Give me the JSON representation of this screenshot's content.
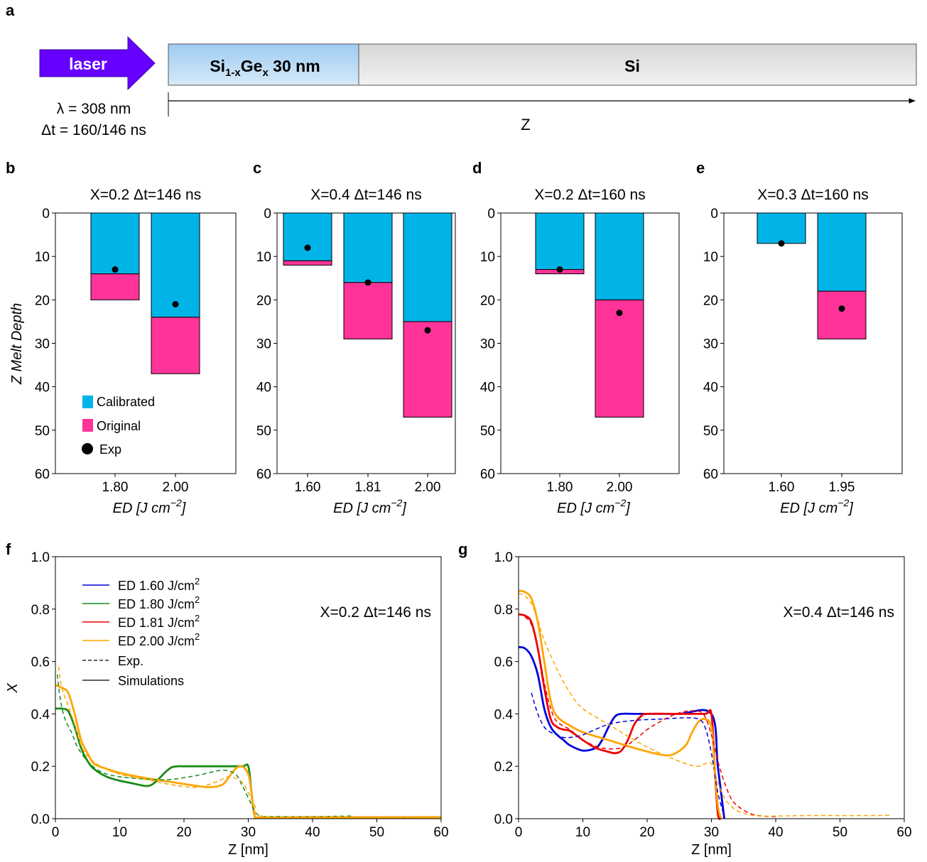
{
  "panel_labels": [
    "a",
    "b",
    "c",
    "d",
    "e",
    "f",
    "g"
  ],
  "schematic": {
    "laser_label": "laser",
    "wavelength": "λ = 308 nm",
    "pulse": "Δt = 160/146 ns",
    "layer1": "Si",
    "layer1_sub": "1-x",
    "layer1_ge": "Ge",
    "layer1_ge_sub": "x",
    "layer1_thickness": " 30 nm",
    "layer2": "Si",
    "axis_label": "Z",
    "colors": {
      "laser": "#6600ff",
      "sige_top": "#9ecbf2",
      "sige_bottom": "#d6eaf8",
      "si": "#e4e4e4"
    }
  },
  "chart_data": [
    {
      "id": "b",
      "type": "bar",
      "title": "X=0.2  Δt=146 ns",
      "ylabel": "Z  Melt  Depth",
      "xlabel": "ED   [J   cm",
      "xlabel_sup": "−2",
      "xlabel_end": "]",
      "ylim": [
        60,
        0
      ],
      "yticks": [
        0,
        10,
        20,
        30,
        40,
        50,
        60
      ],
      "categories": [
        "1.80",
        "2.00"
      ],
      "series": [
        {
          "name": "Calibrated",
          "values": [
            14,
            24
          ],
          "color": "#00b4e8"
        },
        {
          "name": "Original",
          "values": [
            20,
            37
          ],
          "color": "#ff3399"
        },
        {
          "name": "Exp",
          "values": [
            13,
            21
          ],
          "marker": "circle"
        }
      ],
      "legend": [
        "Calibrated",
        "Original",
        "Exp"
      ]
    },
    {
      "id": "c",
      "type": "bar",
      "title": "X=0.4  Δt=146 ns",
      "xlabel": "ED   [J   cm",
      "xlabel_sup": "−2",
      "xlabel_end": "]",
      "ylim": [
        60,
        0
      ],
      "yticks": [
        0,
        10,
        20,
        30,
        40,
        50,
        60
      ],
      "categories": [
        "1.60",
        "1.81",
        "2.00"
      ],
      "series": [
        {
          "name": "Calibrated",
          "values": [
            11,
            16,
            25
          ]
        },
        {
          "name": "Original",
          "values": [
            12,
            29,
            47
          ]
        },
        {
          "name": "Exp",
          "values": [
            8,
            16,
            27
          ]
        }
      ]
    },
    {
      "id": "d",
      "type": "bar",
      "title": "X=0.2  Δt=160 ns",
      "xlabel": "ED   [J   cm",
      "xlabel_sup": "−2",
      "xlabel_end": "]",
      "ylim": [
        60,
        0
      ],
      "yticks": [
        0,
        10,
        20,
        30,
        40,
        50,
        60
      ],
      "categories": [
        "1.80",
        "2.00"
      ],
      "series": [
        {
          "name": "Calibrated",
          "values": [
            13,
            20
          ]
        },
        {
          "name": "Original",
          "values": [
            14,
            47
          ]
        },
        {
          "name": "Exp",
          "values": [
            13,
            23
          ]
        }
      ]
    },
    {
      "id": "e",
      "type": "bar",
      "title": "X=0.3  Δt=160 ns",
      "xlabel": "ED   [J   cm",
      "xlabel_sup": "−2",
      "xlabel_end": "]",
      "ylim": [
        60,
        0
      ],
      "yticks": [
        0,
        10,
        20,
        30,
        40,
        50,
        60
      ],
      "categories": [
        "1.60",
        "1.95"
      ],
      "series": [
        {
          "name": "Calibrated",
          "values": [
            7,
            18
          ]
        },
        {
          "name": "Original",
          "values": [
            7,
            29
          ]
        },
        {
          "name": "Exp",
          "values": [
            7,
            22
          ]
        }
      ]
    },
    {
      "id": "f",
      "type": "line",
      "title": "X=0.2  Δt=146 ns",
      "xlabel": "Z [nm]",
      "ylabel": "X",
      "xlim": [
        0,
        60
      ],
      "ylim": [
        0,
        1.0
      ],
      "xticks": [
        0,
        10,
        20,
        30,
        40,
        50,
        60
      ],
      "yticks": [
        "0.0",
        "0.2",
        "0.4",
        "0.6",
        "0.8",
        "1.0"
      ],
      "legend": [
        {
          "label": "ED 1.60 J/cm",
          "sup": "2",
          "color": "#0000dd",
          "style": "solid"
        },
        {
          "label": "ED 1.80 J/cm",
          "sup": "2",
          "color": "#1a8a1a",
          "style": "solid"
        },
        {
          "label": "ED 1.81 J/cm",
          "sup": "2",
          "color": "#ee0000",
          "style": "solid"
        },
        {
          "label": "ED 2.00 J/cm",
          "sup": "2",
          "color": "#ffa500",
          "style": "solid"
        },
        {
          "label": "Exp.",
          "color": "#000000",
          "style": "dashed"
        },
        {
          "label": "Simulations",
          "color": "#000000",
          "style": "solid"
        }
      ],
      "series": [
        {
          "name": "ED 1.80 J/cm2 sim",
          "color": "#1a8a1a",
          "style": "solid",
          "x": [
            0,
            1,
            2,
            3,
            4,
            5,
            6,
            8,
            10,
            12,
            14,
            15,
            16,
            17,
            18,
            19,
            20,
            25,
            29,
            30,
            30.5,
            31,
            32,
            40,
            60
          ],
          "y": [
            0.42,
            0.42,
            0.41,
            0.35,
            0.27,
            0.22,
            0.19,
            0.16,
            0.145,
            0.135,
            0.125,
            0.13,
            0.15,
            0.175,
            0.195,
            0.2,
            0.2,
            0.2,
            0.2,
            0.2,
            0.1,
            0.01,
            0.005,
            0.005,
            0.005
          ]
        },
        {
          "name": "ED 2.00 J/cm2 sim",
          "color": "#ffa500",
          "style": "solid",
          "x": [
            0,
            1,
            2,
            3,
            4,
            5,
            6,
            8,
            10,
            14,
            18,
            22,
            24,
            26,
            27,
            28,
            29,
            30,
            30.5,
            31,
            32,
            40,
            60
          ],
          "y": [
            0.51,
            0.5,
            0.48,
            0.4,
            0.3,
            0.25,
            0.21,
            0.19,
            0.175,
            0.155,
            0.14,
            0.125,
            0.12,
            0.13,
            0.16,
            0.19,
            0.2,
            0.17,
            0.1,
            0.01,
            0.005,
            0.005,
            0.005
          ]
        },
        {
          "name": "ED 1.80 J/cm2 exp",
          "color": "#1a8a1a",
          "style": "dashed",
          "x": [
            0.3,
            0.8,
            1.5,
            2.5,
            3.5,
            5,
            7,
            10,
            15,
            18,
            22,
            26,
            28,
            29,
            30,
            31,
            32,
            35,
            40,
            46
          ],
          "y": [
            0.55,
            0.45,
            0.38,
            0.33,
            0.27,
            0.22,
            0.18,
            0.16,
            0.15,
            0.15,
            0.165,
            0.185,
            0.17,
            0.13,
            0.08,
            0.03,
            0.01,
            0.008,
            0.008,
            0.01
          ]
        },
        {
          "name": "ED 2.00 J/cm2 exp",
          "color": "#ffa500",
          "style": "dashed",
          "x": [
            0.5,
            1,
            2,
            3,
            4,
            5,
            7,
            10,
            14,
            18,
            22,
            25,
            27,
            29,
            30,
            31,
            32,
            40,
            60
          ],
          "y": [
            0.58,
            0.5,
            0.43,
            0.36,
            0.28,
            0.24,
            0.2,
            0.17,
            0.15,
            0.13,
            0.12,
            0.14,
            0.16,
            0.14,
            0.1,
            0.05,
            0.01,
            0.008,
            0.008
          ]
        }
      ]
    },
    {
      "id": "g",
      "type": "line",
      "title": "X=0.4  Δt=146 ns",
      "xlabel": "Z [nm]",
      "xlim": [
        0,
        60
      ],
      "ylim": [
        0,
        1.0
      ],
      "xticks": [
        0,
        10,
        20,
        30,
        40,
        50,
        60
      ],
      "yticks": [
        "0.0",
        "0.2",
        "0.4",
        "0.6",
        "0.8",
        "1.0"
      ],
      "series": [
        {
          "name": "ED 1.60 J/cm2 sim",
          "color": "#0000dd",
          "style": "solid",
          "x": [
            0,
            1,
            2,
            3,
            4,
            5,
            6,
            7,
            8,
            10,
            12,
            13,
            14,
            15,
            16,
            18,
            20,
            25,
            30,
            31,
            32
          ],
          "y": [
            0.655,
            0.65,
            0.62,
            0.55,
            0.42,
            0.35,
            0.32,
            0.3,
            0.28,
            0.26,
            0.27,
            0.3,
            0.35,
            0.39,
            0.4,
            0.4,
            0.4,
            0.4,
            0.4,
            0.2,
            0.0
          ]
        },
        {
          "name": "ED 1.81 J/cm2 sim",
          "color": "#ee0000",
          "style": "solid",
          "x": [
            0,
            1,
            2,
            3,
            4,
            5,
            6,
            7,
            8,
            10,
            12,
            14,
            15,
            16,
            17,
            18,
            19,
            20,
            25,
            29,
            30,
            30.5,
            31,
            31.5
          ],
          "y": [
            0.78,
            0.775,
            0.75,
            0.65,
            0.5,
            0.38,
            0.35,
            0.34,
            0.335,
            0.3,
            0.27,
            0.255,
            0.25,
            0.26,
            0.3,
            0.36,
            0.39,
            0.4,
            0.4,
            0.4,
            0.4,
            0.2,
            0.02,
            0.0
          ]
        },
        {
          "name": "ED 2.00 J/cm2 sim",
          "color": "#ffa500",
          "style": "solid",
          "x": [
            0,
            1,
            2,
            3,
            4,
            5,
            6,
            8,
            10,
            14,
            18,
            22,
            24,
            26,
            27,
            28,
            29,
            30,
            30.5,
            31,
            31.5
          ],
          "y": [
            0.87,
            0.865,
            0.84,
            0.75,
            0.6,
            0.45,
            0.39,
            0.355,
            0.33,
            0.3,
            0.27,
            0.245,
            0.245,
            0.28,
            0.33,
            0.37,
            0.38,
            0.35,
            0.2,
            0.05,
            0.0
          ]
        },
        {
          "name": "ED 1.60 J/cm2 exp",
          "color": "#0000dd",
          "style": "dashed",
          "x": [
            2,
            3,
            4,
            5,
            6,
            7,
            8,
            10,
            14,
            18,
            22,
            26,
            28,
            29,
            30,
            31,
            32
          ],
          "y": [
            0.48,
            0.4,
            0.35,
            0.33,
            0.32,
            0.31,
            0.31,
            0.32,
            0.36,
            0.375,
            0.38,
            0.385,
            0.38,
            0.35,
            0.25,
            0.1,
            0.01
          ]
        },
        {
          "name": "ED 1.81 J/cm2 exp",
          "color": "#ee0000",
          "style": "dashed",
          "x": [
            0,
            1,
            2,
            3,
            4,
            5,
            6,
            8,
            10,
            13,
            16,
            18,
            20,
            22,
            24,
            26,
            28,
            29,
            30,
            31,
            32,
            33,
            34,
            36,
            38,
            40
          ],
          "y": [
            0.78,
            0.77,
            0.74,
            0.65,
            0.52,
            0.42,
            0.37,
            0.34,
            0.3,
            0.27,
            0.27,
            0.3,
            0.34,
            0.37,
            0.395,
            0.41,
            0.41,
            0.39,
            0.32,
            0.22,
            0.14,
            0.08,
            0.05,
            0.02,
            0.01,
            0.008
          ]
        },
        {
          "name": "ED 2.00 J/cm2 exp",
          "color": "#ffa500",
          "style": "dashed",
          "x": [
            0,
            1,
            2,
            3,
            4,
            6,
            8,
            10,
            14,
            18,
            22,
            26,
            28,
            29,
            30,
            31,
            32,
            33,
            34,
            36,
            38,
            40,
            45,
            50,
            55,
            58
          ],
          "y": [
            0.86,
            0.85,
            0.82,
            0.76,
            0.68,
            0.57,
            0.48,
            0.42,
            0.36,
            0.3,
            0.25,
            0.21,
            0.2,
            0.21,
            0.21,
            0.14,
            0.08,
            0.05,
            0.03,
            0.015,
            0.01,
            0.01,
            0.012,
            0.012,
            0.012,
            0.013
          ]
        }
      ]
    }
  ]
}
